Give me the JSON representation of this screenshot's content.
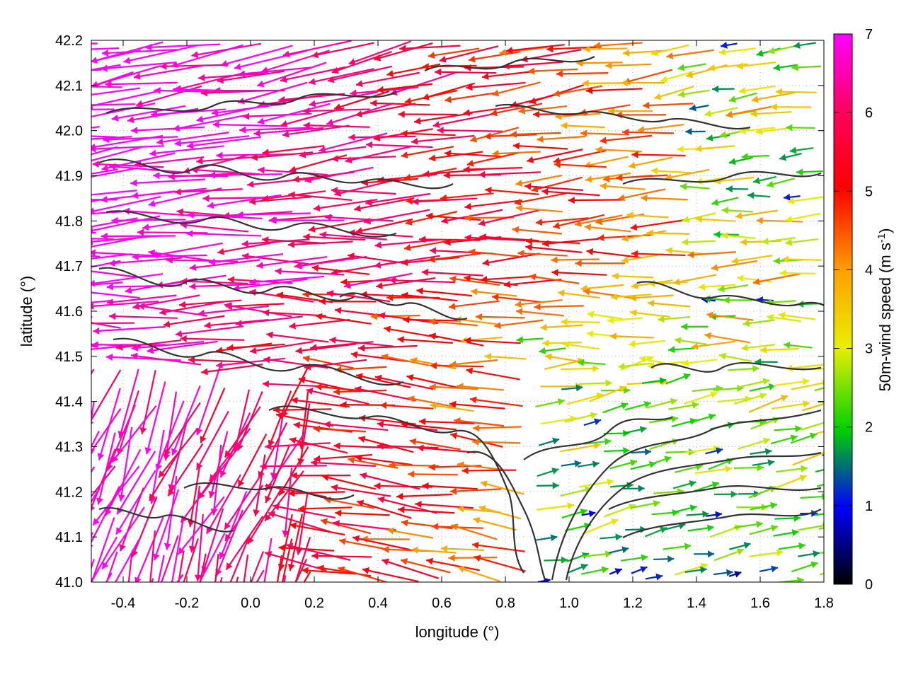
{
  "chart_data": {
    "type": "vector-field",
    "title": "",
    "xlabel": "longitude (°)",
    "ylabel": "latitude (°)",
    "xlim": [
      -0.5,
      1.8
    ],
    "ylim": [
      41.0,
      42.2
    ],
    "xticks": [
      "-0.4",
      "-0.2",
      "0.0",
      "0.2",
      "0.4",
      "0.6",
      "0.8",
      "1.0",
      "1.2",
      "1.4",
      "1.6",
      "1.8"
    ],
    "yticks": [
      "41.0",
      "41.1",
      "41.2",
      "41.3",
      "41.4",
      "41.5",
      "41.6",
      "41.7",
      "41.8",
      "41.9",
      "42.0",
      "42.1",
      "42.2"
    ],
    "grid": true,
    "colorbar": {
      "label": "50m-wind speed (m s",
      "label_exponent": "-1",
      "label_close": ")",
      "ticks": [
        "0",
        "1",
        "2",
        "3",
        "4",
        "5",
        "6",
        "7"
      ],
      "range": [
        0,
        7
      ],
      "colors": [
        "#000000",
        "#0000ff",
        "#00d000",
        "#e8f000",
        "#ffa000",
        "#ff0000",
        "#ff00c8"
      ]
    },
    "overlay": "terrain contour lines (dark gray)",
    "field_summary": "Strong easterly wind (6-7 m/s) across west and north; weaker flow (1-3 m/s) in the south-east quadrant."
  }
}
